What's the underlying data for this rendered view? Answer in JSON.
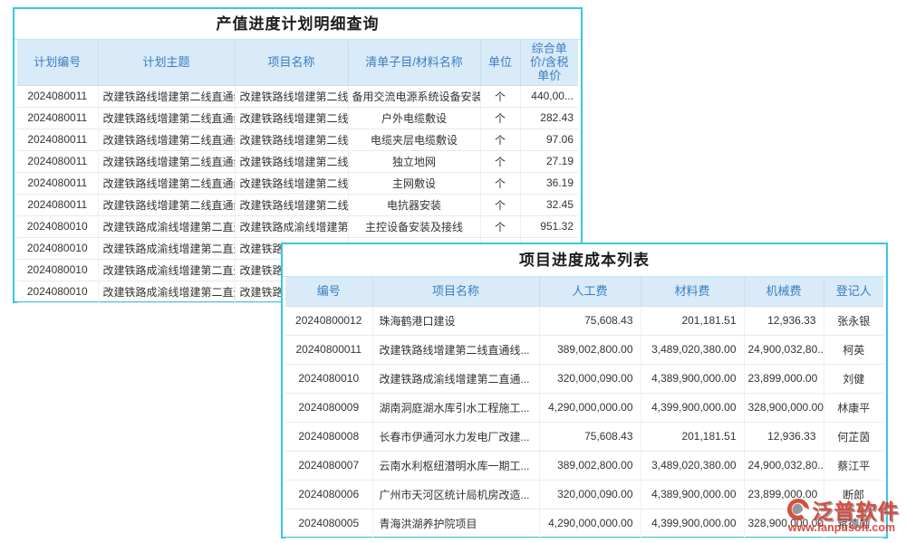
{
  "colors": {
    "accent_border": "#36c6e7",
    "header_bg": "#d9eaf8",
    "header_text": "#3a7fc1",
    "link": "#3d8fe4",
    "text": "#333333",
    "logo_red": "#d43f33"
  },
  "panel1": {
    "title": "产值进度计划明细查询",
    "columns": [
      "计划编号",
      "计划主题",
      "项目名称",
      "清单子目/材料名称",
      "单位",
      "综合单价/含税单价"
    ],
    "rows": [
      [
        "2024080011",
        "改建铁路线增建第二线直通线",
        "改建铁路线增建第二线直通",
        "备用交流电源系统设备安装",
        "个",
        "440,00..."
      ],
      [
        "2024080011",
        "改建铁路线增建第二线直通线",
        "改建铁路线增建第二线直通",
        "户外电缆敷设",
        "个",
        "282.43"
      ],
      [
        "2024080011",
        "改建铁路线增建第二线直通线",
        "改建铁路线增建第二线直通",
        "电缆夹层电缆敷设",
        "个",
        "97.06"
      ],
      [
        "2024080011",
        "改建铁路线增建第二线直通线",
        "改建铁路线增建第二线直通",
        "独立地网",
        "个",
        "27.19"
      ],
      [
        "2024080011",
        "改建铁路线增建第二线直通线",
        "改建铁路线增建第二线直通",
        "主网敷设",
        "个",
        "36.19"
      ],
      [
        "2024080011",
        "改建铁路线增建第二线直通线",
        "改建铁路线增建第二线直通",
        "电抗器安装",
        "个",
        "32.45"
      ],
      [
        "2024080010",
        "改建铁路成渝线增建第二直通",
        "改建铁路成渝线增建第二直",
        "主控设备安装及接线",
        "个",
        "951.32"
      ],
      [
        "2024080010",
        "改建铁路成渝线增建第二直通",
        "改建铁路成渝线增建第二直",
        "",
        "",
        ""
      ],
      [
        "2024080010",
        "改建铁路成渝线增建第二直通",
        "改建铁路成渝线增建第二直",
        "",
        "",
        ""
      ],
      [
        "2024080010",
        "改建铁路成渝线增建第二直通",
        "改建铁路成渝线增建第二直",
        "",
        "",
        ""
      ]
    ]
  },
  "panel2": {
    "title": "项目进度成本列表",
    "columns": [
      "编号",
      "项目名称",
      "人工费",
      "材料费",
      "机械费",
      "登记人"
    ],
    "rows": [
      [
        "20240800012",
        "珠海鹤港口建设",
        "75,608.43",
        "201,181.51",
        "12,936.33",
        "张永银"
      ],
      [
        "20240800011",
        "改建铁路线增建第二线直通线...",
        "389,002,800.00",
        "3,489,020,380.00",
        "24,900,032,80...",
        "柯英"
      ],
      [
        "2024080010",
        "改建铁路成渝线增建第二直通...",
        "320,000,090.00",
        "4,389,900,000.00",
        "23,899,000.00",
        "刘健"
      ],
      [
        "2024080009",
        "湖南洞庭湖水库引水工程施工...",
        "4,290,000,000.00",
        "4,399,900,000.00",
        "328,900,000.00",
        "林康平"
      ],
      [
        "2024080008",
        "长春市伊通河水力发电厂改建...",
        "75,608.43",
        "201,181.51",
        "12,936.33",
        "何芷茵"
      ],
      [
        "2024080007",
        "云南水利枢纽潜明水库一期工...",
        "389,002,800.00",
        "3,489,020,380.00",
        "24,900,032,80...",
        "蔡江平"
      ],
      [
        "2024080006",
        "广州市天河区统计局机房改造...",
        "320,000,090.00",
        "4,389,900,000.00",
        "23,899,000.00",
        "断郎"
      ],
      [
        "2024080005",
        "青海洪湖养护院项目",
        "4,290,000,000.00",
        "4,399,900,000.00",
        "328,900,000.00",
        "蒋德勋"
      ]
    ]
  },
  "logo": {
    "brand": "泛普软件",
    "url": "www.fanpusoft.com"
  }
}
